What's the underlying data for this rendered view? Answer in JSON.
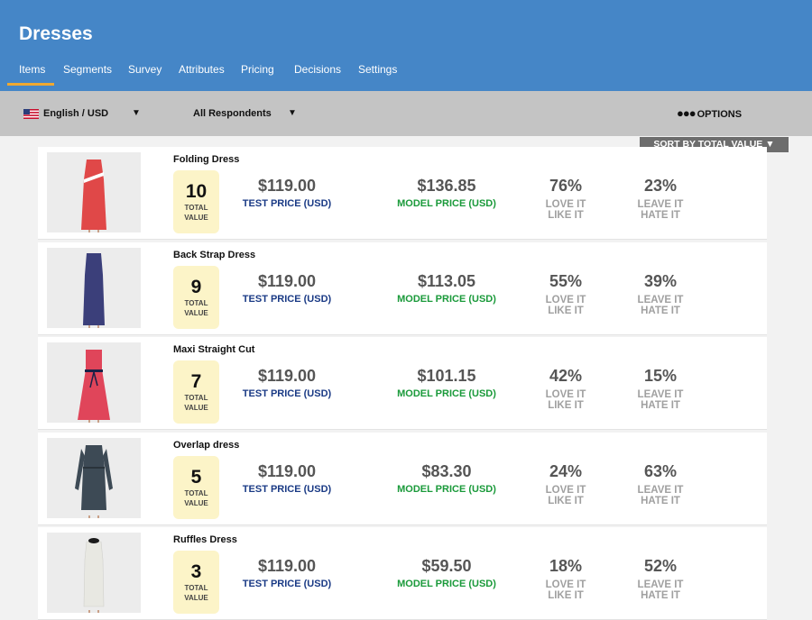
{
  "app": {
    "title": "Dresses"
  },
  "tabs": [
    "Items",
    "Segments",
    "Survey",
    "Attributes",
    "Pricing",
    "Decisions",
    "Settings"
  ],
  "active_tab": "Items",
  "toolbar": {
    "language": "English / USD",
    "respondents": "All Respondents",
    "options_dots": "●●●",
    "options_label": "OPTIONS",
    "sort_label": "SORT BY TOTAL VALUE ▼"
  },
  "labels": {
    "total_value_1": "TOTAL",
    "total_value_2": "VALUE",
    "test_price": "TEST PRICE (USD)",
    "model_price": "MODEL PRICE (USD)",
    "love_1": "LOVE IT",
    "love_2": "LIKE IT",
    "leave_1": "LEAVE IT",
    "leave_2": "HATE IT"
  },
  "items": [
    {
      "name": "Folding Dress",
      "total_value": "10",
      "test_price": "$119.00",
      "model_price": "$136.85",
      "love_pct": "76%",
      "leave_pct": "23%",
      "dress_color": "#e04848",
      "dress_style": "folding"
    },
    {
      "name": "Back Strap Dress",
      "total_value": "9",
      "test_price": "$119.00",
      "model_price": "$113.05",
      "love_pct": "55%",
      "leave_pct": "39%",
      "dress_color": "#3b3f7a",
      "dress_style": "strap"
    },
    {
      "name": "Maxi Straight Cut",
      "total_value": "7",
      "test_price": "$119.00",
      "model_price": "$101.15",
      "love_pct": "42%",
      "leave_pct": "15%",
      "dress_color": "#e0455a",
      "dress_style": "belted"
    },
    {
      "name": "Overlap dress",
      "total_value": "5",
      "test_price": "$119.00",
      "model_price": "$83.30",
      "love_pct": "24%",
      "leave_pct": "63%",
      "dress_color": "#3d4a55",
      "dress_style": "wrap"
    },
    {
      "name": "Ruffles Dress",
      "total_value": "3",
      "test_price": "$119.00",
      "model_price": "$59.50",
      "love_pct": "18%",
      "leave_pct": "52%",
      "dress_color": "#e8e8e2",
      "dress_style": "ruffle"
    }
  ],
  "colors": {
    "header": "#4586c7",
    "active_tab_underline": "#f0a830",
    "toolbar": "#c4c4c4",
    "test_price": "#1a3a85",
    "model_price": "#1a9a3a",
    "score_bg": "#fcf4c8"
  }
}
